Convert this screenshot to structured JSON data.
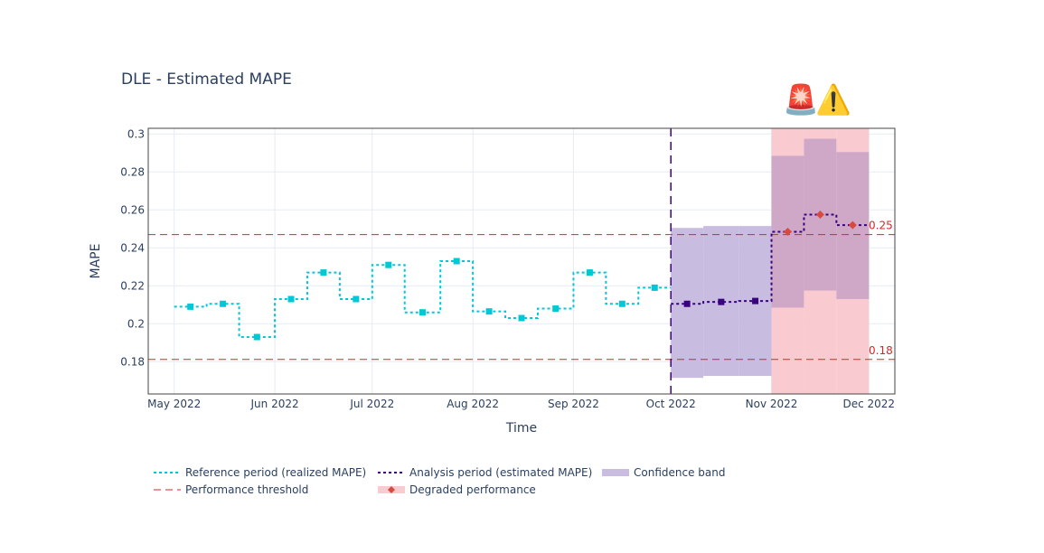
{
  "chart_data": {
    "type": "line",
    "title": "DLE - Estimated MAPE",
    "alert_icons": [
      "🚨",
      "⚠️"
    ],
    "xlabel": "Time",
    "ylabel": "MAPE",
    "ylim": [
      0.163,
      0.303
    ],
    "y_ticks": [
      0.18,
      0.2,
      0.22,
      0.24,
      0.26,
      0.28,
      0.3
    ],
    "y_tick_labels": [
      "0.18",
      "0.2",
      "0.22",
      "0.24",
      "0.26",
      "0.28",
      "0.3"
    ],
    "x_ticks": [
      {
        "t": 0,
        "label": "May 2022"
      },
      {
        "t": 31,
        "label": "Jun 2022"
      },
      {
        "t": 61,
        "label": "Jul 2022"
      },
      {
        "t": 92,
        "label": "Aug 2022"
      },
      {
        "t": 123,
        "label": "Sep 2022"
      },
      {
        "t": 153,
        "label": "Oct 2022"
      },
      {
        "t": 184,
        "label": "Nov 2022"
      },
      {
        "t": 214,
        "label": "Dec 2022"
      }
    ],
    "x_unit": "days since May 1 2022",
    "xlim": [
      -8,
      222
    ],
    "reference": {
      "name": "Reference period (realized MAPE)",
      "color": "#00c8d7",
      "chunks": [
        {
          "start": 0,
          "end": 10,
          "value": 0.209
        },
        {
          "start": 10,
          "end": 20,
          "value": 0.2105
        },
        {
          "start": 20,
          "end": 31,
          "value": 0.193
        },
        {
          "start": 31,
          "end": 41,
          "value": 0.213
        },
        {
          "start": 41,
          "end": 51,
          "value": 0.227
        },
        {
          "start": 51,
          "end": 61,
          "value": 0.213
        },
        {
          "start": 61,
          "end": 71,
          "value": 0.231
        },
        {
          "start": 71,
          "end": 82,
          "value": 0.206
        },
        {
          "start": 82,
          "end": 92,
          "value": 0.233
        },
        {
          "start": 92,
          "end": 102,
          "value": 0.2065
        },
        {
          "start": 102,
          "end": 112,
          "value": 0.203
        },
        {
          "start": 112,
          "end": 123,
          "value": 0.208
        },
        {
          "start": 123,
          "end": 133,
          "value": 0.227
        },
        {
          "start": 133,
          "end": 143,
          "value": 0.2105
        },
        {
          "start": 143,
          "end": 153,
          "value": 0.219
        }
      ]
    },
    "analysis": {
      "name": "Analysis period (estimated MAPE)",
      "color": "#3b0280",
      "chunks": [
        {
          "start": 153,
          "end": 163,
          "value": 0.2105,
          "lower": 0.1715,
          "upper": 0.2505,
          "alert": false
        },
        {
          "start": 163,
          "end": 174,
          "value": 0.2115,
          "lower": 0.1725,
          "upper": 0.2515,
          "alert": false
        },
        {
          "start": 174,
          "end": 184,
          "value": 0.212,
          "lower": 0.1725,
          "upper": 0.2515,
          "alert": false
        },
        {
          "start": 184,
          "end": 194,
          "value": 0.2485,
          "lower": 0.2085,
          "upper": 0.2885,
          "alert": true
        },
        {
          "start": 194,
          "end": 204,
          "value": 0.2575,
          "lower": 0.2175,
          "upper": 0.2975,
          "alert": true
        },
        {
          "start": 204,
          "end": 214,
          "value": 0.252,
          "lower": 0.213,
          "upper": 0.2905,
          "alert": true
        }
      ]
    },
    "analysis_start": 153,
    "thresholds": [
      {
        "value": 0.247,
        "label": "0.25"
      },
      {
        "value": 0.1812,
        "label": "0.18"
      }
    ],
    "legend": [
      {
        "key": "reference",
        "label": "Reference period (realized MAPE)"
      },
      {
        "key": "analysis",
        "label": "Analysis period (estimated MAPE)"
      },
      {
        "key": "band",
        "label": "Confidence band"
      },
      {
        "key": "threshold",
        "label": "Performance threshold"
      },
      {
        "key": "degraded",
        "label": "Degraded performance"
      }
    ],
    "colors": {
      "band": "#c8bce0",
      "alert_band": "#f9cbd0",
      "alert_band_overlap": "#cfa8c8",
      "threshold": "#d62728",
      "degraded_marker": "#d9493c",
      "grid": "#e5ecf6",
      "axis_line": "#444444"
    }
  }
}
